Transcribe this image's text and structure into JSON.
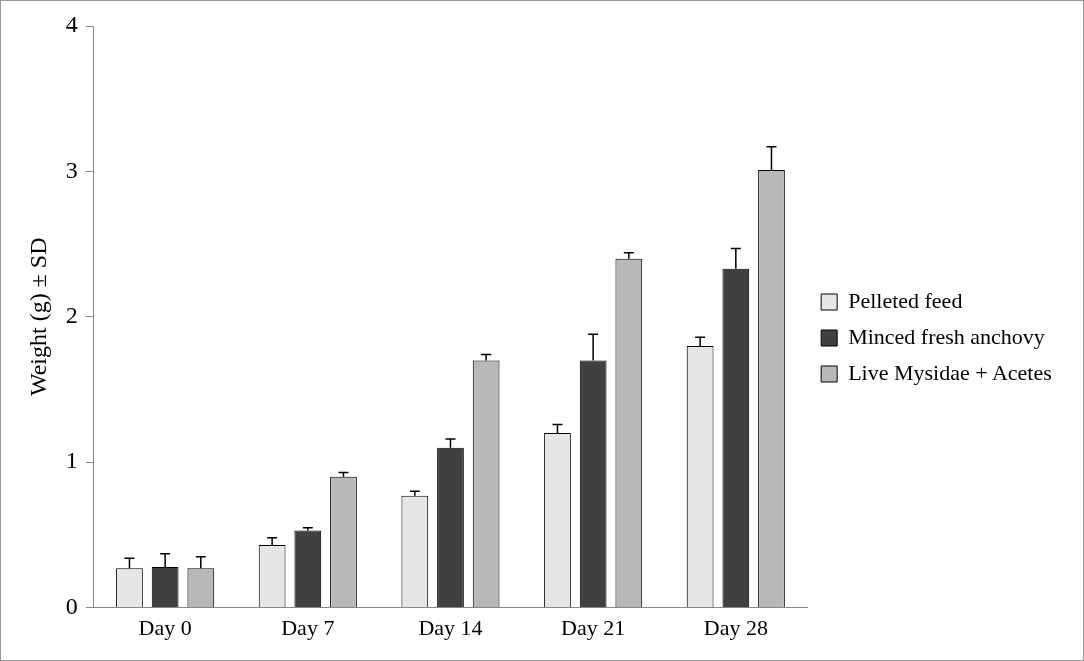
{
  "chart_data": {
    "type": "bar",
    "ylabel": "Weight (g) ± SD",
    "categories": [
      "Day 0",
      "Day 7",
      "Day 14",
      "Day 21",
      "Day 28"
    ],
    "series": [
      {
        "name": "Pelleted feed",
        "color": "#e6e6e6",
        "values": [
          0.27,
          0.43,
          0.77,
          1.2,
          1.8
        ],
        "errors": [
          [
            0.27,
            0.34
          ],
          [
            0.43,
            0.48
          ],
          [
            0.77,
            0.8
          ],
          [
            1.2,
            1.26
          ],
          [
            1.8,
            1.86
          ]
        ]
      },
      {
        "name": "Minced fresh anchovy",
        "color": "#404040",
        "values": [
          0.28,
          0.53,
          1.1,
          1.7,
          2.33
        ],
        "errors": [
          [
            0.28,
            0.37
          ],
          [
            0.53,
            0.55
          ],
          [
            1.1,
            1.16
          ],
          [
            1.7,
            1.88
          ],
          [
            2.33,
            2.47
          ]
        ]
      },
      {
        "name": "Live Mysidae + Acetes",
        "color": "#b8b8b8",
        "values": [
          0.27,
          0.9,
          1.7,
          2.4,
          3.01
        ],
        "errors": [
          [
            0.27,
            0.35
          ],
          [
            0.9,
            0.93
          ],
          [
            1.7,
            1.74
          ],
          [
            2.4,
            2.44
          ],
          [
            3.01,
            3.17
          ]
        ]
      }
    ],
    "ylim": [
      0,
      4
    ],
    "yticks": [
      0,
      1,
      2,
      3,
      4
    ],
    "grid": false,
    "legend": "right"
  }
}
